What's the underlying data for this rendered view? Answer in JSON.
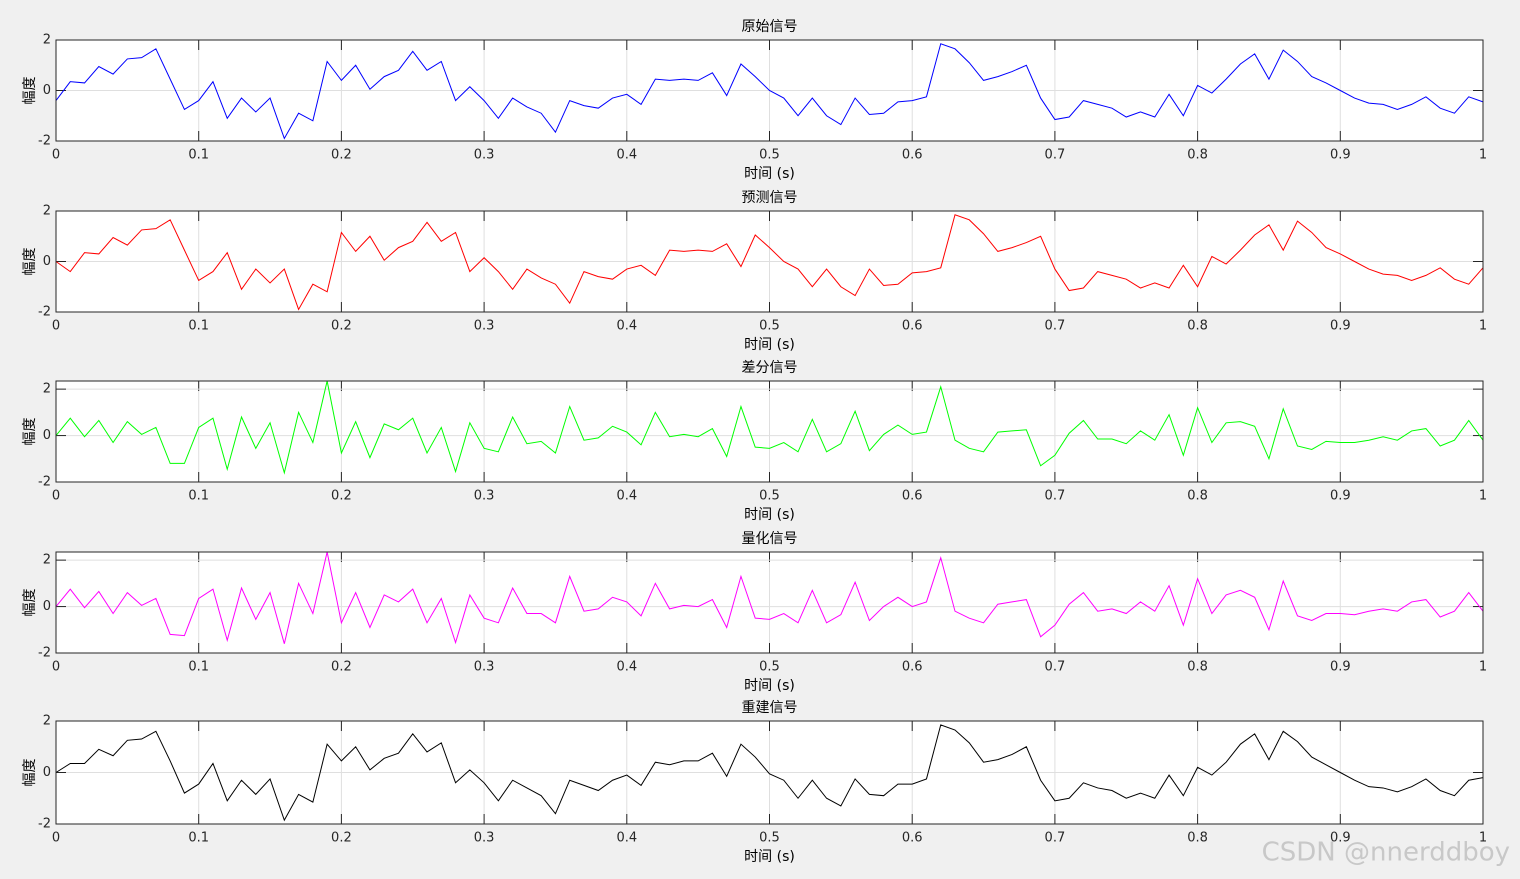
{
  "watermark": "CSDN @nnerddboy",
  "chart_data": [
    {
      "type": "line",
      "title": "原始信号",
      "xlabel": "时间 (s)",
      "ylabel": "幅度",
      "color": "#0000ff",
      "grid": true,
      "xlim": [
        0,
        1
      ],
      "ylim": [
        -2,
        2
      ],
      "xticks": [
        0,
        0.1,
        0.2,
        0.3,
        0.4,
        0.5,
        0.6,
        0.7,
        0.8,
        0.9,
        1
      ],
      "yticks": [
        -2,
        0,
        2
      ],
      "x": [
        0,
        0.01,
        0.02,
        0.03,
        0.04,
        0.05,
        0.06,
        0.07,
        0.08,
        0.09,
        0.1,
        0.11,
        0.12,
        0.13,
        0.14,
        0.15,
        0.16,
        0.17,
        0.18,
        0.19,
        0.2,
        0.21,
        0.22,
        0.23,
        0.24,
        0.25,
        0.26,
        0.27,
        0.28,
        0.29,
        0.3,
        0.31,
        0.32,
        0.33,
        0.34,
        0.35,
        0.36,
        0.37,
        0.38,
        0.39,
        0.4,
        0.41,
        0.42,
        0.43,
        0.44,
        0.45,
        0.46,
        0.47,
        0.48,
        0.49,
        0.5,
        0.51,
        0.52,
        0.53,
        0.54,
        0.55,
        0.56,
        0.57,
        0.58,
        0.59,
        0.6,
        0.61,
        0.62,
        0.63,
        0.64,
        0.65,
        0.66,
        0.67,
        0.68,
        0.69,
        0.7,
        0.71,
        0.72,
        0.73,
        0.74,
        0.75,
        0.76,
        0.77,
        0.78,
        0.79,
        0.8,
        0.81,
        0.82,
        0.83,
        0.84,
        0.85,
        0.86,
        0.87,
        0.88,
        0.89,
        0.9,
        0.91,
        0.92,
        0.93,
        0.94,
        0.95,
        0.96,
        0.97,
        0.98,
        0.99,
        1
      ],
      "values": [
        -0.4,
        0.35,
        0.3,
        0.95,
        0.65,
        1.25,
        1.3,
        1.65,
        0.45,
        -0.75,
        -0.4,
        0.35,
        -1.1,
        -0.3,
        -0.85,
        -0.3,
        -1.9,
        -0.9,
        -1.2,
        1.15,
        0.4,
        1.0,
        0.05,
        0.55,
        0.8,
        1.55,
        0.8,
        1.15,
        -0.4,
        0.15,
        -0.4,
        -1.1,
        -0.3,
        -0.65,
        -0.9,
        -1.65,
        -0.4,
        -0.6,
        -0.7,
        -0.3,
        -0.15,
        -0.55,
        0.45,
        0.4,
        0.45,
        0.4,
        0.7,
        -0.2,
        1.05,
        0.55,
        0.0,
        -0.3,
        -1.0,
        -0.3,
        -1.0,
        -1.35,
        -0.3,
        -0.95,
        -0.9,
        -0.45,
        -0.4,
        -0.25,
        1.85,
        1.65,
        1.1,
        0.4,
        0.55,
        0.75,
        1.0,
        -0.3,
        -1.15,
        -1.05,
        -0.4,
        -0.55,
        -0.7,
        -1.05,
        -0.85,
        -1.05,
        -0.15,
        -1.0,
        0.2,
        -0.1,
        0.45,
        1.05,
        1.45,
        0.45,
        1.6,
        1.15,
        0.55,
        0.3,
        0.0,
        -0.3,
        -0.5,
        -0.55,
        -0.75,
        -0.55,
        -0.25,
        -0.7,
        -0.9,
        -0.25,
        -0.45
      ]
    },
    {
      "type": "line",
      "title": "预测信号",
      "xlabel": "时间 (s)",
      "ylabel": "幅度",
      "color": "#ff0000",
      "grid": true,
      "xlim": [
        0,
        1
      ],
      "ylim": [
        -2,
        2
      ],
      "xticks": [
        0,
        0.1,
        0.2,
        0.3,
        0.4,
        0.5,
        0.6,
        0.7,
        0.8,
        0.9,
        1
      ],
      "yticks": [
        -2,
        0,
        2
      ],
      "x": [
        0,
        0.01,
        0.02,
        0.03,
        0.04,
        0.05,
        0.06,
        0.07,
        0.08,
        0.09,
        0.1,
        0.11,
        0.12,
        0.13,
        0.14,
        0.15,
        0.16,
        0.17,
        0.18,
        0.19,
        0.2,
        0.21,
        0.22,
        0.23,
        0.24,
        0.25,
        0.26,
        0.27,
        0.28,
        0.29,
        0.3,
        0.31,
        0.32,
        0.33,
        0.34,
        0.35,
        0.36,
        0.37,
        0.38,
        0.39,
        0.4,
        0.41,
        0.42,
        0.43,
        0.44,
        0.45,
        0.46,
        0.47,
        0.48,
        0.49,
        0.5,
        0.51,
        0.52,
        0.53,
        0.54,
        0.55,
        0.56,
        0.57,
        0.58,
        0.59,
        0.6,
        0.61,
        0.62,
        0.63,
        0.64,
        0.65,
        0.66,
        0.67,
        0.68,
        0.69,
        0.7,
        0.71,
        0.72,
        0.73,
        0.74,
        0.75,
        0.76,
        0.77,
        0.78,
        0.79,
        0.8,
        0.81,
        0.82,
        0.83,
        0.84,
        0.85,
        0.86,
        0.87,
        0.88,
        0.89,
        0.9,
        0.91,
        0.92,
        0.93,
        0.94,
        0.95,
        0.96,
        0.97,
        0.98,
        0.99,
        1
      ],
      "values": [
        0,
        -0.4,
        0.35,
        0.3,
        0.95,
        0.65,
        1.25,
        1.3,
        1.65,
        0.45,
        -0.75,
        -0.4,
        0.35,
        -1.1,
        -0.3,
        -0.85,
        -0.3,
        -1.9,
        -0.9,
        -1.2,
        1.15,
        0.4,
        1.0,
        0.05,
        0.55,
        0.8,
        1.55,
        0.8,
        1.15,
        -0.4,
        0.15,
        -0.4,
        -1.1,
        -0.3,
        -0.65,
        -0.9,
        -1.65,
        -0.4,
        -0.6,
        -0.7,
        -0.3,
        -0.15,
        -0.55,
        0.45,
        0.4,
        0.45,
        0.4,
        0.7,
        -0.2,
        1.05,
        0.55,
        0.0,
        -0.3,
        -1.0,
        -0.3,
        -1.0,
        -1.35,
        -0.3,
        -0.95,
        -0.9,
        -0.45,
        -0.4,
        -0.25,
        1.85,
        1.65,
        1.1,
        0.4,
        0.55,
        0.75,
        1.0,
        -0.3,
        -1.15,
        -1.05,
        -0.4,
        -0.55,
        -0.7,
        -1.05,
        -0.85,
        -1.05,
        -0.15,
        -1.0,
        0.2,
        -0.1,
        0.45,
        1.05,
        1.45,
        0.45,
        1.6,
        1.15,
        0.55,
        0.3,
        0.0,
        -0.3,
        -0.5,
        -0.55,
        -0.75,
        -0.55,
        -0.25,
        -0.7,
        -0.9,
        -0.25
      ]
    },
    {
      "type": "line",
      "title": "差分信号",
      "xlabel": "时间 (s)",
      "ylabel": "幅度",
      "color": "#00ff00",
      "grid": true,
      "xlim": [
        0,
        1
      ],
      "ylim": [
        -2,
        2.35
      ],
      "xticks": [
        0,
        0.1,
        0.2,
        0.3,
        0.4,
        0.5,
        0.6,
        0.7,
        0.8,
        0.9,
        1
      ],
      "yticks": [
        -2,
        0,
        2
      ],
      "x": [
        0,
        0.01,
        0.02,
        0.03,
        0.04,
        0.05,
        0.06,
        0.07,
        0.08,
        0.09,
        0.1,
        0.11,
        0.12,
        0.13,
        0.14,
        0.15,
        0.16,
        0.17,
        0.18,
        0.19,
        0.2,
        0.21,
        0.22,
        0.23,
        0.24,
        0.25,
        0.26,
        0.27,
        0.28,
        0.29,
        0.3,
        0.31,
        0.32,
        0.33,
        0.34,
        0.35,
        0.36,
        0.37,
        0.38,
        0.39,
        0.4,
        0.41,
        0.42,
        0.43,
        0.44,
        0.45,
        0.46,
        0.47,
        0.48,
        0.49,
        0.5,
        0.51,
        0.52,
        0.53,
        0.54,
        0.55,
        0.56,
        0.57,
        0.58,
        0.59,
        0.6,
        0.61,
        0.62,
        0.63,
        0.64,
        0.65,
        0.66,
        0.67,
        0.68,
        0.69,
        0.7,
        0.71,
        0.72,
        0.73,
        0.74,
        0.75,
        0.76,
        0.77,
        0.78,
        0.79,
        0.8,
        0.81,
        0.82,
        0.83,
        0.84,
        0.85,
        0.86,
        0.87,
        0.88,
        0.89,
        0.9,
        0.91,
        0.92,
        0.93,
        0.94,
        0.95,
        0.96,
        0.97,
        0.98,
        0.99,
        1
      ],
      "values": [
        0,
        0.75,
        -0.05,
        0.65,
        -0.3,
        0.6,
        0.05,
        0.35,
        -1.2,
        -1.2,
        0.35,
        0.75,
        -1.45,
        0.8,
        -0.55,
        0.55,
        -1.6,
        1.0,
        -0.3,
        2.35,
        -0.75,
        0.6,
        -0.95,
        0.5,
        0.25,
        0.75,
        -0.75,
        0.35,
        -1.55,
        0.55,
        -0.55,
        -0.7,
        0.8,
        -0.35,
        -0.25,
        -0.75,
        1.25,
        -0.2,
        -0.1,
        0.4,
        0.15,
        -0.4,
        1.0,
        -0.05,
        0.05,
        -0.05,
        0.3,
        -0.9,
        1.25,
        -0.5,
        -0.55,
        -0.3,
        -0.7,
        0.7,
        -0.7,
        -0.35,
        1.05,
        -0.65,
        0.05,
        0.45,
        0.05,
        0.15,
        2.1,
        -0.2,
        -0.55,
        -0.7,
        0.15,
        0.2,
        0.25,
        -1.3,
        -0.85,
        0.1,
        0.65,
        -0.15,
        -0.15,
        -0.35,
        0.2,
        -0.2,
        0.9,
        -0.85,
        1.2,
        -0.3,
        0.55,
        0.6,
        0.4,
        -1.0,
        1.15,
        -0.45,
        -0.6,
        -0.25,
        -0.3,
        -0.3,
        -0.2,
        -0.05,
        -0.2,
        0.2,
        0.3,
        -0.45,
        -0.2,
        0.65,
        -0.2
      ]
    },
    {
      "type": "line",
      "title": "量化信号",
      "xlabel": "时间 (s)",
      "ylabel": "幅度",
      "color": "#ff00ff",
      "grid": true,
      "xlim": [
        0,
        1
      ],
      "ylim": [
        -2,
        2.35
      ],
      "xticks": [
        0,
        0.1,
        0.2,
        0.3,
        0.4,
        0.5,
        0.6,
        0.7,
        0.8,
        0.9,
        1
      ],
      "yticks": [
        -2,
        0,
        2
      ],
      "x": [
        0,
        0.01,
        0.02,
        0.03,
        0.04,
        0.05,
        0.06,
        0.07,
        0.08,
        0.09,
        0.1,
        0.11,
        0.12,
        0.13,
        0.14,
        0.15,
        0.16,
        0.17,
        0.18,
        0.19,
        0.2,
        0.21,
        0.22,
        0.23,
        0.24,
        0.25,
        0.26,
        0.27,
        0.28,
        0.29,
        0.3,
        0.31,
        0.32,
        0.33,
        0.34,
        0.35,
        0.36,
        0.37,
        0.38,
        0.39,
        0.4,
        0.41,
        0.42,
        0.43,
        0.44,
        0.45,
        0.46,
        0.47,
        0.48,
        0.49,
        0.5,
        0.51,
        0.52,
        0.53,
        0.54,
        0.55,
        0.56,
        0.57,
        0.58,
        0.59,
        0.6,
        0.61,
        0.62,
        0.63,
        0.64,
        0.65,
        0.66,
        0.67,
        0.68,
        0.69,
        0.7,
        0.71,
        0.72,
        0.73,
        0.74,
        0.75,
        0.76,
        0.77,
        0.78,
        0.79,
        0.8,
        0.81,
        0.82,
        0.83,
        0.84,
        0.85,
        0.86,
        0.87,
        0.88,
        0.89,
        0.9,
        0.91,
        0.92,
        0.93,
        0.94,
        0.95,
        0.96,
        0.97,
        0.98,
        0.99,
        1
      ],
      "values": [
        0,
        0.75,
        -0.05,
        0.65,
        -0.3,
        0.6,
        0.05,
        0.35,
        -1.2,
        -1.25,
        0.35,
        0.75,
        -1.45,
        0.8,
        -0.55,
        0.6,
        -1.6,
        1.0,
        -0.3,
        2.35,
        -0.7,
        0.6,
        -0.9,
        0.5,
        0.2,
        0.75,
        -0.7,
        0.35,
        -1.55,
        0.5,
        -0.5,
        -0.7,
        0.8,
        -0.3,
        -0.3,
        -0.7,
        1.3,
        -0.2,
        -0.1,
        0.4,
        0.2,
        -0.4,
        1.0,
        -0.1,
        0.05,
        0.0,
        0.3,
        -0.9,
        1.3,
        -0.5,
        -0.55,
        -0.3,
        -0.7,
        0.7,
        -0.7,
        -0.35,
        1.05,
        -0.6,
        0.0,
        0.4,
        0.0,
        0.2,
        2.1,
        -0.2,
        -0.5,
        -0.7,
        0.1,
        0.2,
        0.3,
        -1.3,
        -0.8,
        0.1,
        0.6,
        -0.2,
        -0.1,
        -0.3,
        0.2,
        -0.2,
        0.9,
        -0.8,
        1.2,
        -0.3,
        0.5,
        0.7,
        0.4,
        -1.0,
        1.1,
        -0.4,
        -0.6,
        -0.3,
        -0.3,
        -0.35,
        -0.2,
        -0.1,
        -0.2,
        0.2,
        0.3,
        -0.45,
        -0.2,
        0.6,
        -0.2
      ]
    },
    {
      "type": "line",
      "title": "重建信号",
      "xlabel": "时间 (s)",
      "ylabel": "幅度",
      "color": "#000000",
      "grid": true,
      "xlim": [
        0,
        1
      ],
      "ylim": [
        -2,
        2
      ],
      "xticks": [
        0,
        0.1,
        0.2,
        0.3,
        0.4,
        0.5,
        0.6,
        0.7,
        0.8,
        0.9,
        1
      ],
      "yticks": [
        -2,
        0,
        2
      ],
      "x": [
        0,
        0.01,
        0.02,
        0.03,
        0.04,
        0.05,
        0.06,
        0.07,
        0.08,
        0.09,
        0.1,
        0.11,
        0.12,
        0.13,
        0.14,
        0.15,
        0.16,
        0.17,
        0.18,
        0.19,
        0.2,
        0.21,
        0.22,
        0.23,
        0.24,
        0.25,
        0.26,
        0.27,
        0.28,
        0.29,
        0.3,
        0.31,
        0.32,
        0.33,
        0.34,
        0.35,
        0.36,
        0.37,
        0.38,
        0.39,
        0.4,
        0.41,
        0.42,
        0.43,
        0.44,
        0.45,
        0.46,
        0.47,
        0.48,
        0.49,
        0.5,
        0.51,
        0.52,
        0.53,
        0.54,
        0.55,
        0.56,
        0.57,
        0.58,
        0.59,
        0.6,
        0.61,
        0.62,
        0.63,
        0.64,
        0.65,
        0.66,
        0.67,
        0.68,
        0.69,
        0.7,
        0.71,
        0.72,
        0.73,
        0.74,
        0.75,
        0.76,
        0.77,
        0.78,
        0.79,
        0.8,
        0.81,
        0.82,
        0.83,
        0.84,
        0.85,
        0.86,
        0.87,
        0.88,
        0.89,
        0.9,
        0.91,
        0.92,
        0.93,
        0.94,
        0.95,
        0.96,
        0.97,
        0.98,
        0.99,
        1
      ],
      "values": [
        0,
        0.35,
        0.35,
        0.9,
        0.65,
        1.25,
        1.3,
        1.6,
        0.45,
        -0.8,
        -0.45,
        0.35,
        -1.1,
        -0.3,
        -0.85,
        -0.25,
        -1.85,
        -0.85,
        -1.15,
        1.1,
        0.45,
        1.0,
        0.1,
        0.55,
        0.75,
        1.5,
        0.8,
        1.15,
        -0.4,
        0.1,
        -0.4,
        -1.1,
        -0.3,
        -0.6,
        -0.9,
        -1.6,
        -0.3,
        -0.5,
        -0.7,
        -0.3,
        -0.1,
        -0.5,
        0.4,
        0.3,
        0.45,
        0.45,
        0.75,
        -0.15,
        1.1,
        0.6,
        -0.05,
        -0.3,
        -1.0,
        -0.3,
        -1.0,
        -1.3,
        -0.25,
        -0.85,
        -0.9,
        -0.45,
        -0.45,
        -0.25,
        1.85,
        1.65,
        1.15,
        0.4,
        0.5,
        0.7,
        1.0,
        -0.3,
        -1.1,
        -1.0,
        -0.4,
        -0.6,
        -0.7,
        -1.0,
        -0.8,
        -1.0,
        -0.1,
        -0.9,
        0.2,
        -0.1,
        0.4,
        1.1,
        1.5,
        0.5,
        1.6,
        1.2,
        0.6,
        0.3,
        0.0,
        -0.3,
        -0.55,
        -0.6,
        -0.75,
        -0.55,
        -0.25,
        -0.7,
        -0.9,
        -0.3,
        -0.2
      ]
    }
  ]
}
